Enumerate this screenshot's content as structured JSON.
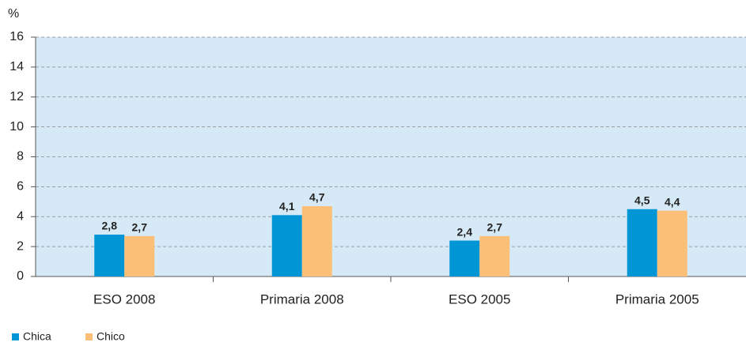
{
  "chart_data": {
    "type": "bar",
    "y_label": "%",
    "categories": [
      "ESO 2008",
      "Primaria 2008",
      "ESO 2005",
      "Primaria 2005"
    ],
    "series": [
      {
        "name": "Chica",
        "color": "#0096d6",
        "values": [
          2.8,
          4.1,
          2.4,
          4.5
        ],
        "value_labels": [
          "2,8",
          "4,1",
          "2,4",
          "4,5"
        ]
      },
      {
        "name": "Chico",
        "color": "#fbbf78",
        "values": [
          2.7,
          4.7,
          2.7,
          4.4
        ],
        "value_labels": [
          "2,7",
          "4,7",
          "2,7",
          "4,4"
        ]
      }
    ],
    "ylim": [
      0,
      16
    ],
    "yticks": [
      0,
      2,
      4,
      6,
      8,
      10,
      12,
      14,
      16
    ],
    "grid": true,
    "background": "#d6e9f6",
    "legend": "bottom-left"
  }
}
